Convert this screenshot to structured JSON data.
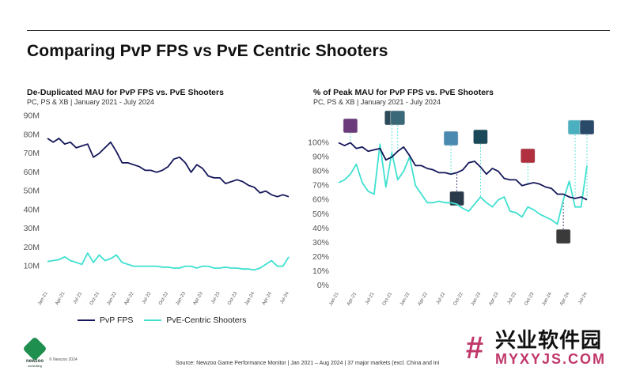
{
  "title": "Comparing PvP FPS vs PvE Centric Shooters",
  "footer": {
    "source": "Source: Newzoo Game Performance Monitor | Jan 2021 – Aug 2024 | 37 major markets (excl. China and Ini",
    "copyright": "© Newzoo 2024",
    "logo_name": "newzoo",
    "logo_tag": "consulting"
  },
  "watermark": {
    "cn": "兴业软件园",
    "url": "MYXYJS.COM",
    "icon": "hash-icon"
  },
  "legend": [
    {
      "label": "PvP FPS",
      "color": "#14175a"
    },
    {
      "label": "PvE-Centric Shooters",
      "color": "#3fe0d0"
    }
  ],
  "chart_data": [
    {
      "type": "line",
      "title": "De-Duplicated MAU for PvP FPS vs. PvE Shooters",
      "subtitle": "PC, PS & XB | January 2021 - July 2024",
      "y_ticks": [
        "10M",
        "20M",
        "30M",
        "40M",
        "50M",
        "60M",
        "70M",
        "80M",
        "90M"
      ],
      "ylim": [
        0,
        90
      ],
      "x_ticks": [
        "Jan-21",
        "Apr-21",
        "Jul-21",
        "Oct-21",
        "Jan-22",
        "Apr-22",
        "Jul-22",
        "Oct-22",
        "Jan-23",
        "Apr-23",
        "Jul-23",
        "Oct-23",
        "Jan-24",
        "Apr-24",
        "Jul-24"
      ],
      "series": [
        {
          "name": "PvP FPS",
          "color": "#14175a",
          "values": [
            78,
            76,
            78,
            75,
            76,
            73,
            74,
            75,
            68,
            70,
            73,
            76,
            71,
            65,
            65,
            64,
            63,
            61,
            61,
            60,
            61,
            63,
            67,
            68,
            65,
            60,
            64,
            62,
            58,
            57,
            57,
            54,
            55,
            56,
            55,
            53,
            52,
            49,
            50,
            48,
            47,
            48,
            47
          ]
        },
        {
          "name": "PvE-Centric Shooters",
          "color": "#3fe0d0",
          "values": [
            12.5,
            13,
            13.5,
            15,
            13,
            12,
            11,
            17,
            12,
            16,
            13,
            14,
            16,
            12,
            11,
            10,
            10,
            10,
            10,
            10,
            9.5,
            9.5,
            9,
            9,
            10,
            10,
            9,
            10,
            10,
            9,
            9,
            9.5,
            9,
            9,
            8.5,
            8.5,
            8,
            9,
            11,
            13,
            10,
            10,
            15
          ]
        }
      ]
    },
    {
      "type": "line",
      "title": "% of Peak MAU for PvP FPS vs. PvE Shooters",
      "subtitle": "PC, PS & XB | January 2021 - July 2024",
      "y_ticks": [
        "0%",
        "10%",
        "20%",
        "30%",
        "40%",
        "50%",
        "60%",
        "70%",
        "80%",
        "90%",
        "100%"
      ],
      "ylim": [
        0,
        100
      ],
      "x_ticks": [
        "Jan-21",
        "Apr-21",
        "Jul-21",
        "Oct-21",
        "Jan-22",
        "Apr-22",
        "Jul-22",
        "Oct-22",
        "Jan-23",
        "Apr-23",
        "Jul-23",
        "Oct-23",
        "Jan-24",
        "Apr-24",
        "Jul-24"
      ],
      "series": [
        {
          "name": "PvP FPS",
          "color": "#14175a",
          "values": [
            100,
            98,
            100,
            96,
            97,
            94,
            95,
            96,
            88,
            90,
            94,
            97,
            91,
            84,
            84,
            82,
            81,
            79,
            79,
            78,
            79,
            81,
            86,
            87,
            83,
            78,
            82,
            80,
            75,
            74,
            74,
            70,
            71,
            72,
            71,
            69,
            68,
            64,
            64,
            62,
            61,
            62,
            60
          ]
        },
        {
          "name": "PvE-Centric Shooters",
          "color": "#3fe0d0",
          "values": [
            72,
            74,
            78,
            85,
            72,
            66,
            64,
            99,
            69,
            93,
            74,
            80,
            90,
            70,
            64,
            58,
            58,
            59,
            58,
            58,
            57,
            54,
            52,
            57,
            62,
            58,
            55,
            60,
            62,
            52,
            51,
            48,
            55,
            53,
            50,
            48,
            46,
            43,
            60,
            73,
            55,
            55,
            84
          ]
        }
      ],
      "annotations": [
        {
          "x_index": 2,
          "y": 100,
          "icon": "game-cover-icon"
        },
        {
          "x_index": 9,
          "y": 93,
          "icon": "game-cover-icon"
        },
        {
          "x_index": 10,
          "y": 94,
          "icon": "game-cover-icon"
        },
        {
          "x_index": 19,
          "y": 78,
          "icon": "game-cover-icon"
        },
        {
          "x_index": 20,
          "y": 79,
          "icon": "game-cover-icon"
        },
        {
          "x_index": 24,
          "y": 62,
          "icon": "game-cover-icon"
        },
        {
          "x_index": 32,
          "y": 71,
          "icon": "game-cover-icon"
        },
        {
          "x_index": 38,
          "y": 60,
          "icon": "game-cover-icon"
        },
        {
          "x_index": 40,
          "y": 61,
          "icon": "game-cover-icon"
        },
        {
          "x_index": 42,
          "y": 60,
          "icon": "game-cover-icon"
        }
      ]
    }
  ]
}
